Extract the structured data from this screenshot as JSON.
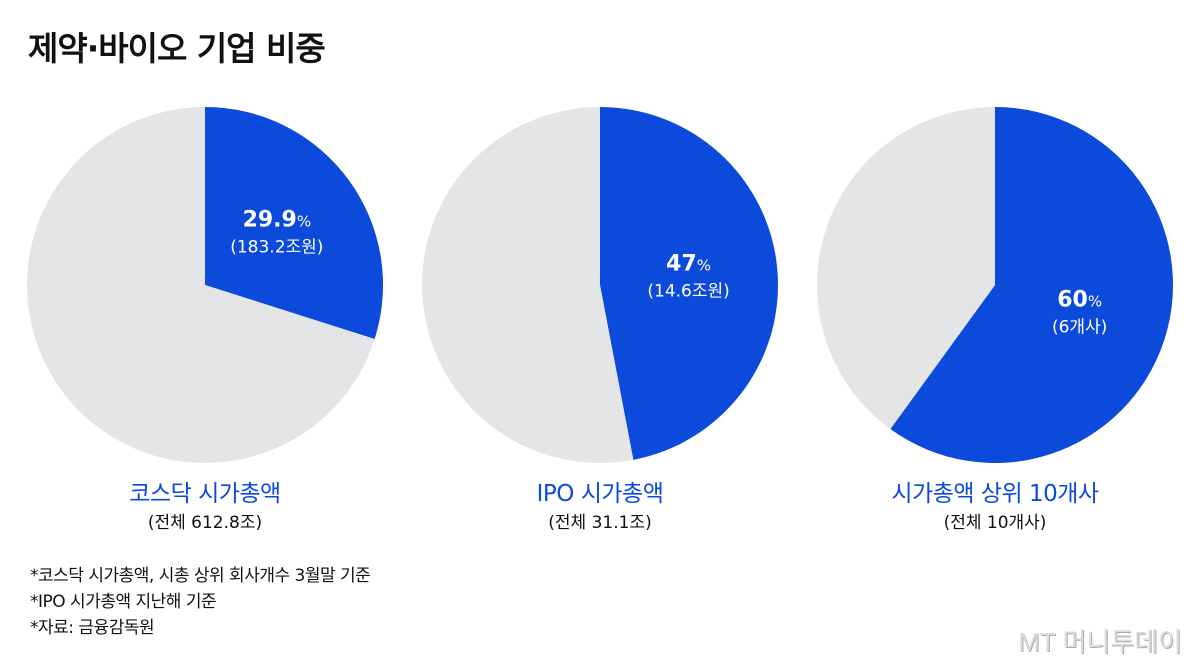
{
  "title": "제약·바이오 기업 비중",
  "colors": {
    "highlight": "#0b4adb",
    "rest": "#e4e5e7"
  },
  "chart_data": [
    {
      "type": "pie",
      "category": "코스닥 시가총액",
      "total_label": "(전체 612.8조)",
      "values": [
        29.9,
        70.1
      ],
      "highlight_label": "29.9",
      "highlight_unit": "%",
      "highlight_detail": "(183.2조원)"
    },
    {
      "type": "pie",
      "category": "IPO 시가총액",
      "total_label": "(전체 31.1조)",
      "values": [
        47,
        53
      ],
      "highlight_label": "47",
      "highlight_unit": "%",
      "highlight_detail": "(14.6조원)"
    },
    {
      "type": "pie",
      "category": "시가총액 상위 10개사",
      "total_label": "(전체 10개사)",
      "values": [
        60,
        40
      ],
      "highlight_label": "60",
      "highlight_unit": "%",
      "highlight_detail": "(6개사)"
    }
  ],
  "notes": [
    "*코스닥 시가총액, 시총 상위 회사개수 3월말 기준",
    "*IPO 시가총액 지난해 기준",
    "*자료: 금융감독원"
  ],
  "logo": "MT 머니투데이"
}
